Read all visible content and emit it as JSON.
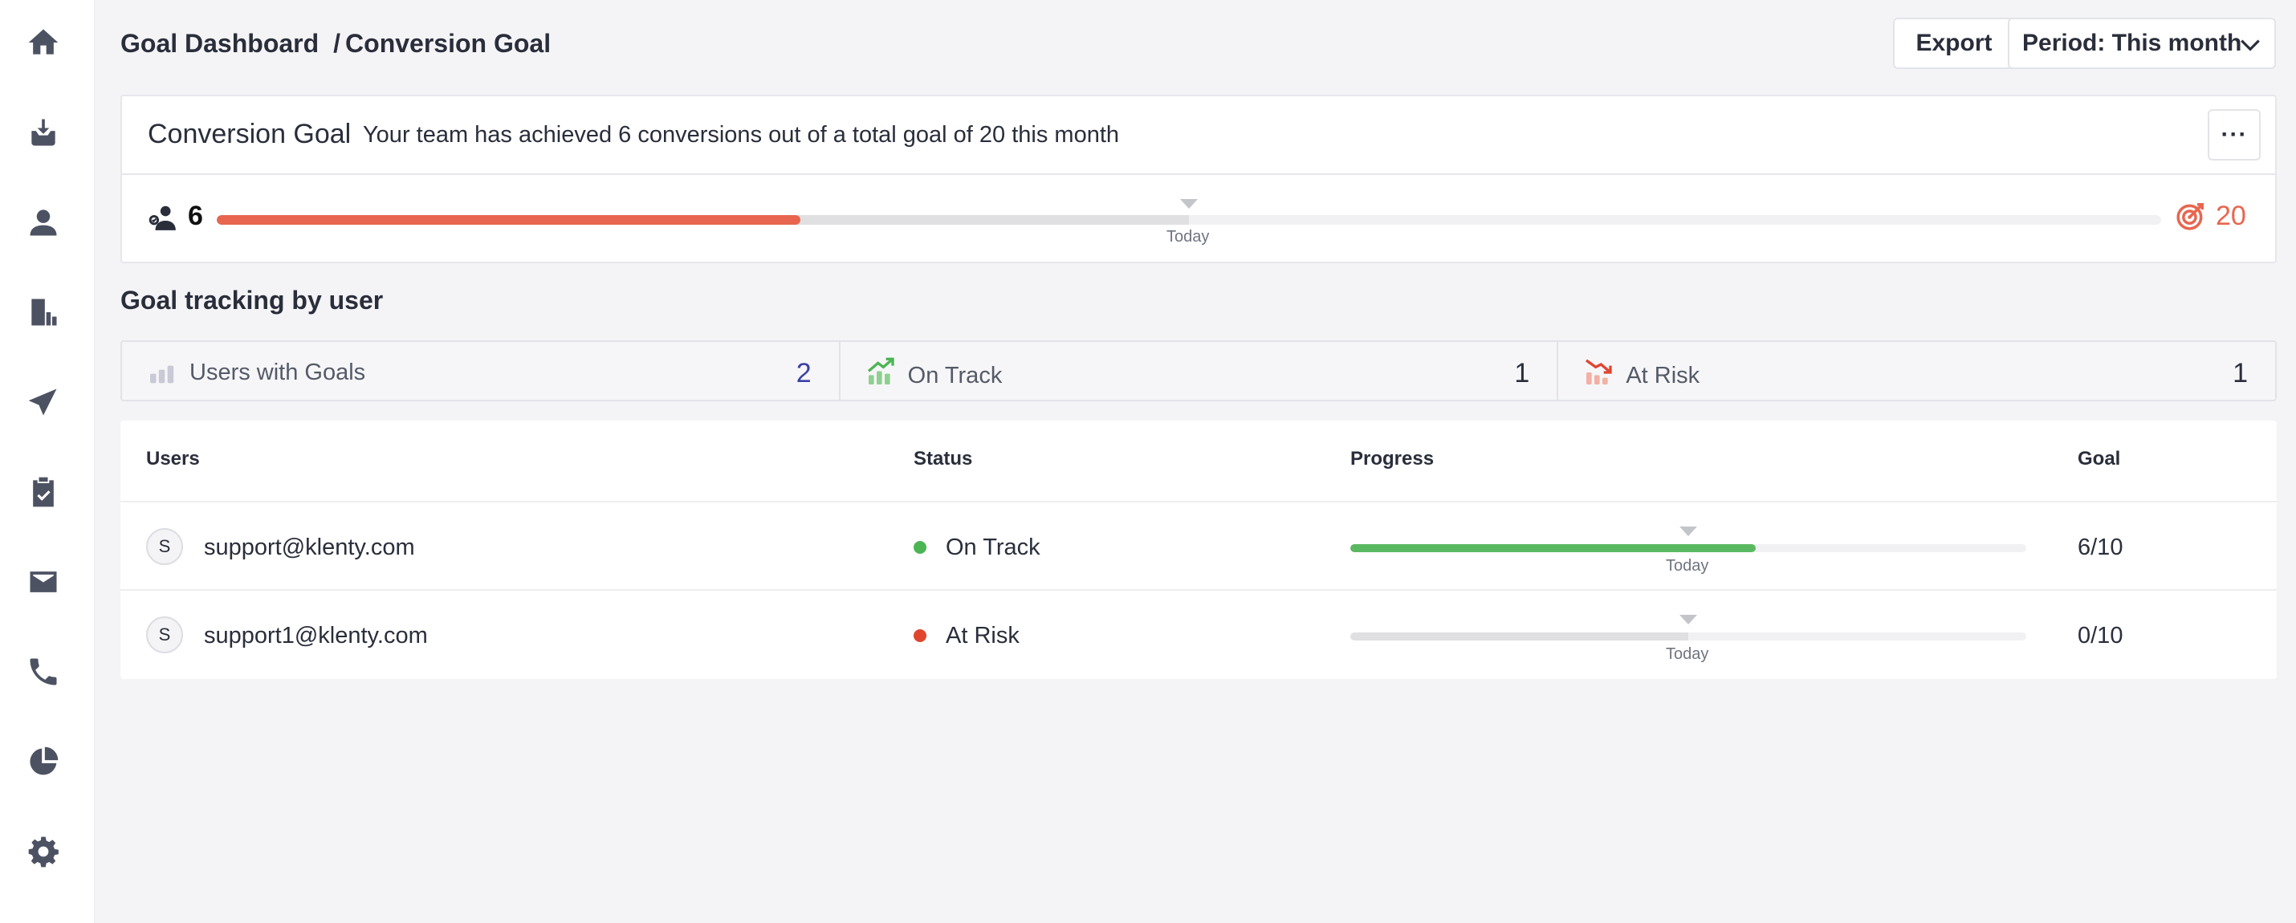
{
  "sidebar": {
    "items": [
      {
        "icon": "home-icon"
      },
      {
        "icon": "inbox-icon"
      },
      {
        "icon": "user-icon"
      },
      {
        "icon": "report-icon"
      },
      {
        "icon": "send-icon"
      },
      {
        "icon": "clipboard-icon"
      },
      {
        "icon": "mail-icon"
      },
      {
        "icon": "phone-icon"
      },
      {
        "icon": "pie-chart-icon"
      },
      {
        "icon": "gear-icon"
      }
    ]
  },
  "header": {
    "breadcrumb_root": "Goal Dashboard",
    "breadcrumb_sep": "/",
    "breadcrumb_current": "Conversion Goal",
    "export_label": "Export",
    "period_label": "Period: This month"
  },
  "goal": {
    "title": "Conversion Goal",
    "description": "Your team has achieved 6 conversions out of a total goal of 20 this month",
    "more_label": "···",
    "achieved": "6",
    "target": "20",
    "achieved_fraction": 0.3,
    "expected_fraction": 0.5,
    "today_label": "Today",
    "fill_color": "#e8664f"
  },
  "tracking": {
    "title": "Goal tracking by user",
    "stats": [
      {
        "label": "Users with Goals",
        "value": "2",
        "icon": "bar-chart-icon"
      },
      {
        "label": "On Track",
        "value": "1",
        "icon": "trend-up-icon"
      },
      {
        "label": "At Risk",
        "value": "1",
        "icon": "trend-down-icon"
      }
    ]
  },
  "table": {
    "headers": {
      "users": "Users",
      "status": "Status",
      "progress": "Progress",
      "goal": "Goal"
    },
    "rows": [
      {
        "avatar": "S",
        "email": "support@klenty.com",
        "status": "On Track",
        "status_color": "#4cb553",
        "progress_fraction": 0.6,
        "expected_fraction": 0.5,
        "today_label": "Today",
        "goal": "6/10"
      },
      {
        "avatar": "S",
        "email": "support1@klenty.com",
        "status": "At Risk",
        "status_color": "#e0452e",
        "progress_fraction": 0.0,
        "expected_fraction": 0.5,
        "today_label": "Today",
        "goal": "0/10"
      }
    ]
  }
}
